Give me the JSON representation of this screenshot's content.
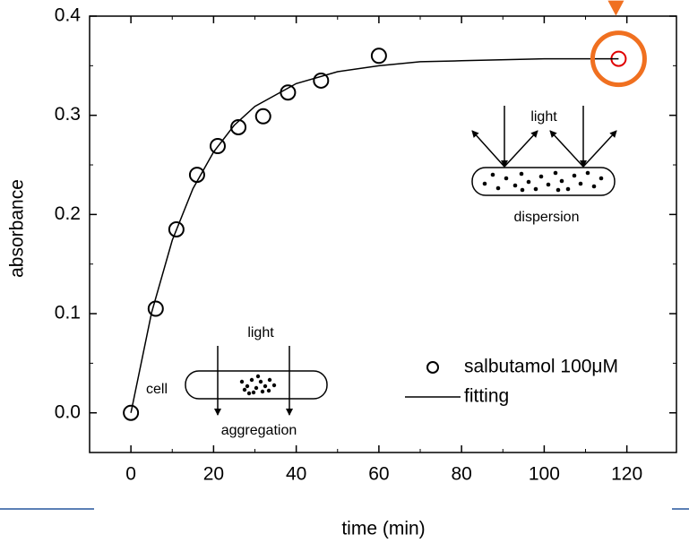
{
  "chart_data": {
    "type": "scatter",
    "x_label": "time (min)",
    "y_label": "absorbance",
    "xlim": [
      -10,
      132
    ],
    "ylim": [
      -0.04,
      0.4
    ],
    "xticks": [
      0,
      20,
      40,
      60,
      80,
      100,
      120
    ],
    "yticks": [
      {
        "value": 0,
        "label": "0.0"
      },
      0.1,
      0.2,
      0.3,
      0.4
    ],
    "series": [
      {
        "name": "salbutamol 100μM",
        "type": "scatter",
        "color": "#000000",
        "point_colors": [
          "#000000",
          "#000000",
          "#000000",
          "#000000",
          "#000000",
          "#000000",
          "#000000",
          "#000000",
          "#000000",
          "#000000",
          "#e00000"
        ],
        "x": [
          0,
          6,
          11,
          16,
          21,
          26,
          32,
          38,
          46,
          60,
          118
        ],
        "values": [
          0,
          0.105,
          0.185,
          0.24,
          0.269,
          0.288,
          0.299,
          0.323,
          0.335,
          0.36,
          0.357
        ]
      },
      {
        "name": "fitting",
        "type": "line",
        "color": "#000000",
        "x": [
          0,
          5,
          10,
          15,
          20,
          25,
          30,
          40,
          50,
          60,
          70,
          80,
          100,
          118
        ],
        "values": [
          0,
          0.101,
          0.174,
          0.226,
          0.263,
          0.29,
          0.309,
          0.332,
          0.344,
          0.35,
          0.354,
          0.355,
          0.357,
          0.357
        ]
      }
    ],
    "annotations": {
      "light_top": "light",
      "dispersion": "dispersion",
      "light_bottom": "light",
      "cell": "cell",
      "aggregation": "aggregation"
    }
  }
}
